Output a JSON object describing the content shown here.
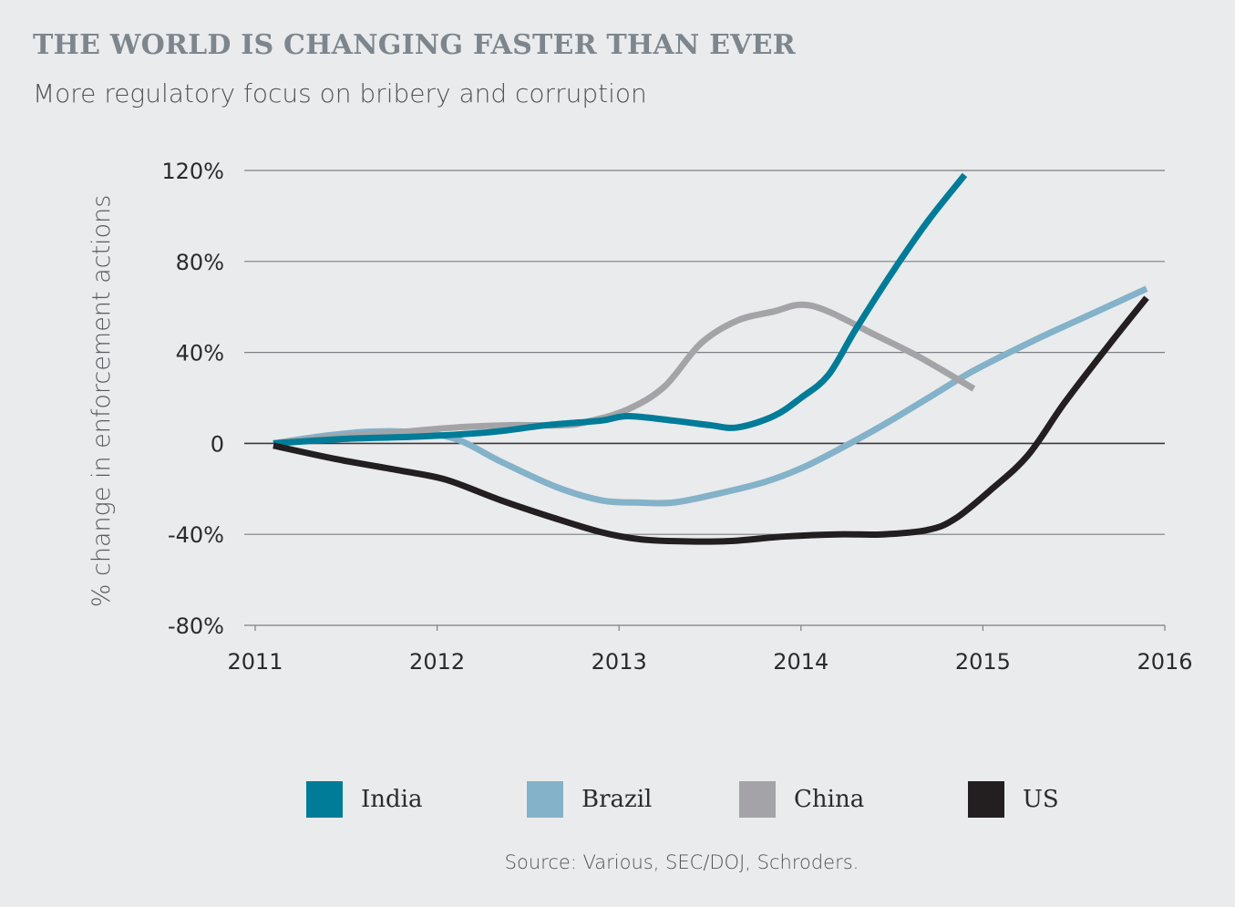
{
  "chart_data": {
    "type": "line",
    "title": "THE WORLD IS CHANGING FASTER THAN EVER",
    "subtitle": "More regulatory focus on bribery and corruption",
    "xlabel": "",
    "ylabel": "% change in enforcement actions",
    "xlim": [
      2011,
      2016
    ],
    "ylim": [
      -80,
      120
    ],
    "x_ticks": [
      2011,
      2012,
      2013,
      2014,
      2015,
      2016
    ],
    "x_tick_labels": [
      "2011",
      "2012",
      "2013",
      "2014",
      "2015",
      "2016"
    ],
    "y_ticks": [
      120,
      80,
      40,
      0,
      -40,
      -80
    ],
    "y_tick_labels": [
      "120%",
      "80%",
      "40%",
      "0",
      "-40%",
      "-80%"
    ],
    "grid": true,
    "legend_position": "bottom",
    "source": "Source: Various, SEC/DOJ, Schroders.",
    "series": [
      {
        "name": "India",
        "color": "#007c98",
        "x": [
          2011.1,
          2011.5,
          2011.9,
          2012.3,
          2012.6,
          2012.9,
          2013.05,
          2013.3,
          2013.5,
          2013.65,
          2013.85,
          2014.0,
          2014.15,
          2014.3,
          2014.5,
          2014.7,
          2014.9
        ],
        "y": [
          0,
          2,
          3,
          5,
          8,
          10,
          12,
          10,
          8,
          7,
          12,
          20,
          30,
          50,
          75,
          98,
          118
        ]
      },
      {
        "name": "Brazil",
        "color": "#83b2c9",
        "x": [
          2011.1,
          2011.35,
          2011.6,
          2011.85,
          2012.1,
          2012.35,
          2012.65,
          2012.9,
          2013.1,
          2013.3,
          2013.55,
          2013.8,
          2014.0,
          2014.2,
          2014.45,
          2014.7,
          2014.95,
          2015.3,
          2015.6,
          2015.9
        ],
        "y": [
          0,
          3,
          5,
          5,
          2,
          -8,
          -19,
          -25,
          -26,
          -26,
          -22,
          -17,
          -11,
          -3,
          8,
          20,
          32,
          46,
          57,
          68
        ]
      },
      {
        "name": "China",
        "color": "#a4a4a8",
        "x": [
          2011.1,
          2011.45,
          2011.8,
          2012.1,
          2012.4,
          2012.7,
          2012.85,
          2013.05,
          2013.25,
          2013.45,
          2013.65,
          2013.85,
          2014.0,
          2014.15,
          2014.4,
          2014.65,
          2014.95
        ],
        "y": [
          0,
          3,
          5,
          7,
          8,
          8,
          10,
          15,
          25,
          44,
          54,
          58,
          61,
          58,
          48,
          38,
          24
        ]
      },
      {
        "name": "US",
        "color": "#231f20",
        "x": [
          2011.1,
          2011.45,
          2011.8,
          2012.05,
          2012.35,
          2012.65,
          2012.9,
          2013.1,
          2013.3,
          2013.6,
          2013.9,
          2014.2,
          2014.45,
          2014.7,
          2014.85,
          2015.05,
          2015.25,
          2015.45,
          2015.7,
          2015.9
        ],
        "y": [
          -1,
          -7,
          -12,
          -16,
          -25,
          -33,
          -39,
          -42,
          -43,
          -43,
          -41,
          -40,
          -40,
          -38,
          -33,
          -20,
          -5,
          18,
          44,
          64
        ]
      }
    ]
  }
}
